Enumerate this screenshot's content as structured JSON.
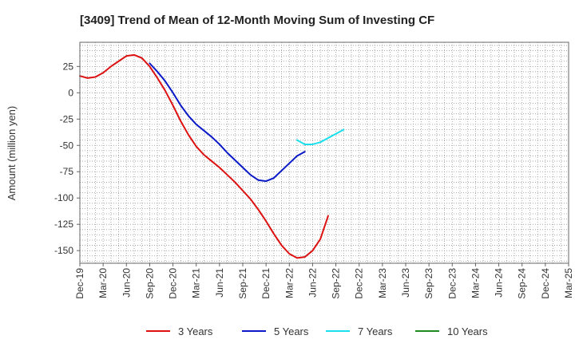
{
  "chart_data": {
    "type": "line",
    "title": "[3409]  Trend of Mean of 12-Month Moving Sum of Investing CF",
    "xlabel": "",
    "ylabel": "Amount (million yen)",
    "ylim": [
      -162,
      48
    ],
    "yticks": [
      25,
      0,
      -25,
      -50,
      -75,
      -100,
      -125,
      -150
    ],
    "ytick_labels": [
      "25",
      "0",
      "-25",
      "-50",
      "-75",
      "-100",
      "-125",
      "-150"
    ],
    "x_labels": [
      "Dec-19",
      "Mar-20",
      "Jun-20",
      "Sep-20",
      "Dec-20",
      "Mar-21",
      "Jun-21",
      "Sep-21",
      "Dec-21",
      "Mar-22",
      "Jun-22",
      "Sep-22",
      "Dec-22",
      "Mar-23",
      "Jun-23",
      "Sep-23",
      "Dec-23",
      "Mar-24",
      "Jun-24",
      "Sep-24",
      "Dec-24",
      "Mar-25"
    ],
    "grid": true,
    "legend_position": "bottom",
    "series": [
      {
        "name": "3 Years",
        "color": "#dd1111",
        "start_index": 0,
        "values": [
          16,
          14,
          15,
          19,
          25,
          30,
          35,
          36,
          33,
          25,
          14,
          2,
          -12,
          -27,
          -40,
          -51,
          -59,
          -65,
          -71,
          -78,
          -85,
          -93,
          -101,
          -111,
          -122,
          -134,
          -145,
          -153,
          -157,
          -156,
          -150,
          -139,
          -117
        ]
      },
      {
        "name": "5 Years",
        "color": "#0a1ac8",
        "start_index": 9,
        "values": [
          28,
          20,
          11,
          0,
          -12,
          -22,
          -30,
          -36,
          -42,
          -49,
          -57,
          -64,
          -71,
          -78,
          -83,
          -84,
          -81,
          -74,
          -67,
          -60,
          -56
        ]
      },
      {
        "name": "7 Years",
        "color": "#19e0ec",
        "start_index": 28,
        "values": [
          -45,
          -49,
          -49,
          -47,
          -43,
          -39,
          -35
        ]
      },
      {
        "name": "10 Years",
        "color": "#1f8a1f",
        "start_index": 0,
        "values": []
      }
    ]
  }
}
